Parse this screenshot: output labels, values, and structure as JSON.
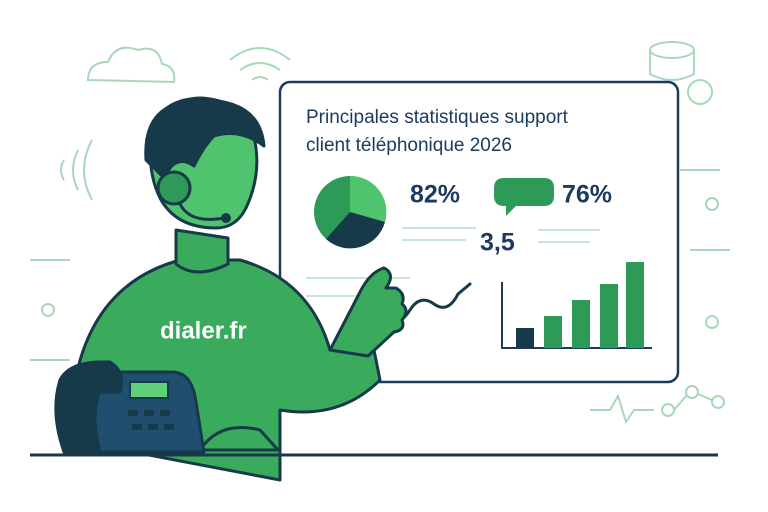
{
  "panel": {
    "title_lines": [
      "Principales statistiques support",
      "client téléphonique 2026"
    ],
    "stats": [
      "82%",
      "76%",
      "3,5"
    ]
  },
  "shirt_label": "dialer.fr"
}
